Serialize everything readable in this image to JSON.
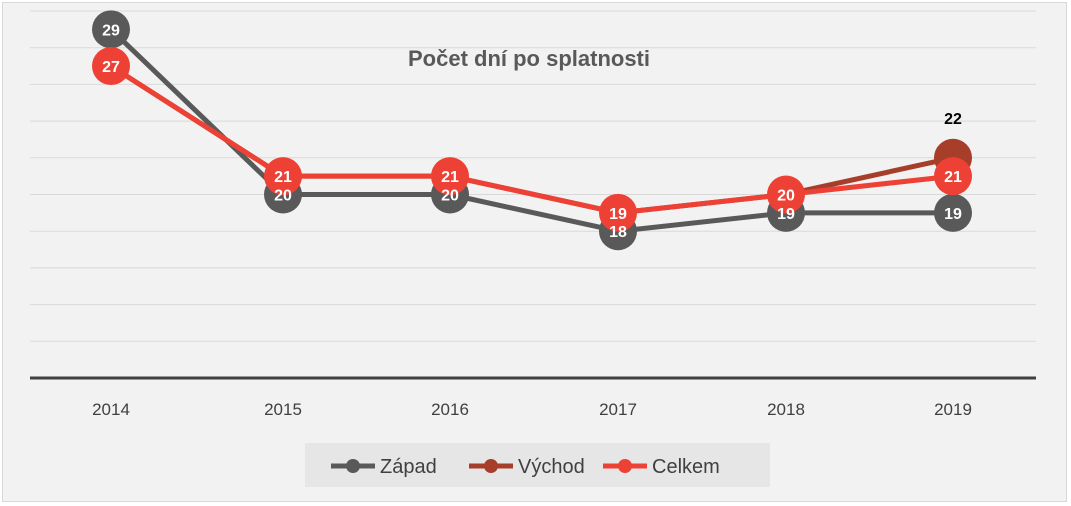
{
  "chart_data": {
    "type": "line",
    "title": "Počet dní po splatnosti",
    "categories": [
      "2014",
      "2015",
      "2016",
      "2017",
      "2018",
      "2019"
    ],
    "ylim": [
      10,
      31
    ],
    "grid": true,
    "legend_position": "bottom",
    "series": [
      {
        "name": "Západ",
        "color": "#595959",
        "values": [
          29,
          20,
          20,
          18,
          19,
          19
        ]
      },
      {
        "name": "Východ",
        "color": "#a63e2a",
        "values": [
          27,
          21,
          21,
          19,
          20,
          22
        ]
      },
      {
        "name": "Celkem",
        "color": "#ee4135",
        "values": [
          27,
          21,
          21,
          19,
          20,
          21
        ]
      }
    ],
    "data_labels": [
      {
        "series": "Západ",
        "values": [
          29,
          20,
          20,
          18,
          19,
          19
        ]
      },
      {
        "series": "Východ",
        "values": [
          null,
          null,
          null,
          null,
          null,
          22
        ]
      },
      {
        "series": "Celkem",
        "values": [
          27,
          21,
          21,
          19,
          20,
          21
        ]
      }
    ]
  }
}
